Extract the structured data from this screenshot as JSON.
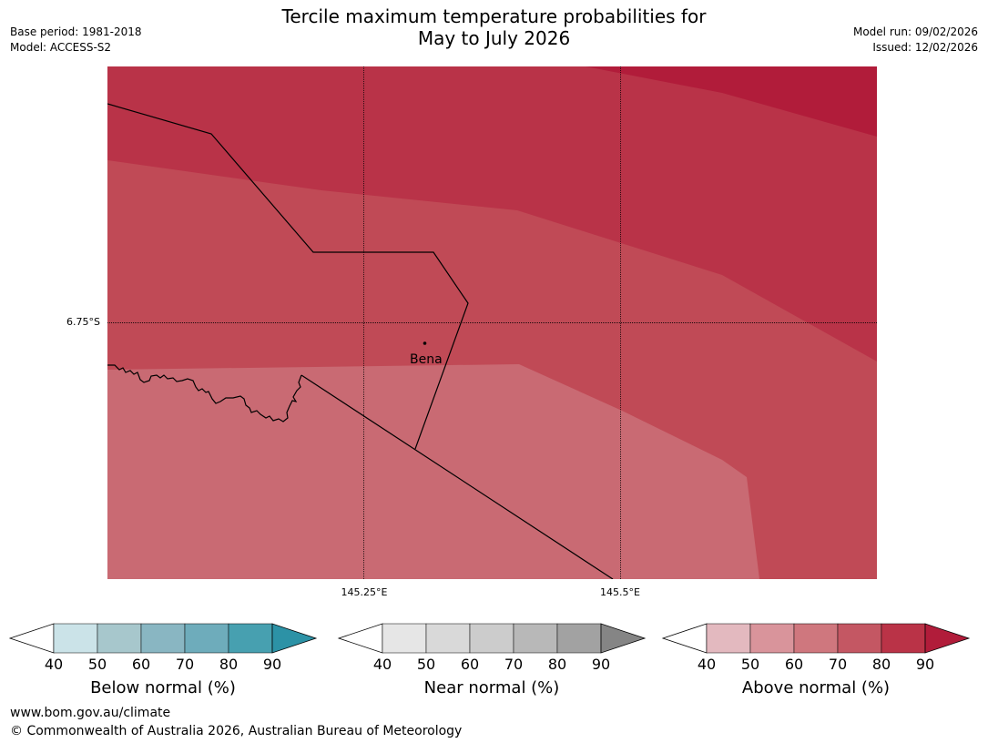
{
  "header": {
    "title_line1": "Tercile maximum temperature probabilities for",
    "title_line2": "May to July 2026",
    "base_period": "Base period: 1981-2018",
    "model": "Model: ACCESS-S2",
    "model_run": "Model run: 09/02/2026",
    "issued": "Issued: 12/02/2026"
  },
  "map": {
    "latitude_label": "6.75°S",
    "longitude_labels": [
      "145.25°E",
      "145.5°E"
    ],
    "place": {
      "name": "Bena"
    },
    "colors": {
      "band_90plus": "#b11c3a",
      "band_80": "#b93348",
      "band_70": "#c04a56",
      "band_60": "#c96a73"
    }
  },
  "colorbars": [
    {
      "title": "Below normal (%)",
      "ticks": [
        "40",
        "50",
        "60",
        "70",
        "80",
        "90"
      ],
      "colors": [
        "#ffffff",
        "#cbe3e8",
        "#a7c7cc",
        "#89b6c2",
        "#6eacbb",
        "#47a0b0",
        "#2c92a6"
      ]
    },
    {
      "title": "Near normal (%)",
      "ticks": [
        "40",
        "50",
        "60",
        "70",
        "80",
        "90"
      ],
      "colors": [
        "#ffffff",
        "#e6e6e6",
        "#d9d9d9",
        "#cccccc",
        "#b8b8b8",
        "#a2a2a2",
        "#858585"
      ]
    },
    {
      "title": "Above normal (%)",
      "ticks": [
        "40",
        "50",
        "60",
        "70",
        "80",
        "90"
      ],
      "colors": [
        "#ffffff",
        "#e3b9bf",
        "#d9949b",
        "#cf777e",
        "#c45763",
        "#ba3347",
        "#b11c3a"
      ]
    }
  ],
  "footer": {
    "website": "www.bom.gov.au/climate",
    "copyright": "© Commonwealth of Australia 2026, Australian Bureau of Meteorology"
  }
}
